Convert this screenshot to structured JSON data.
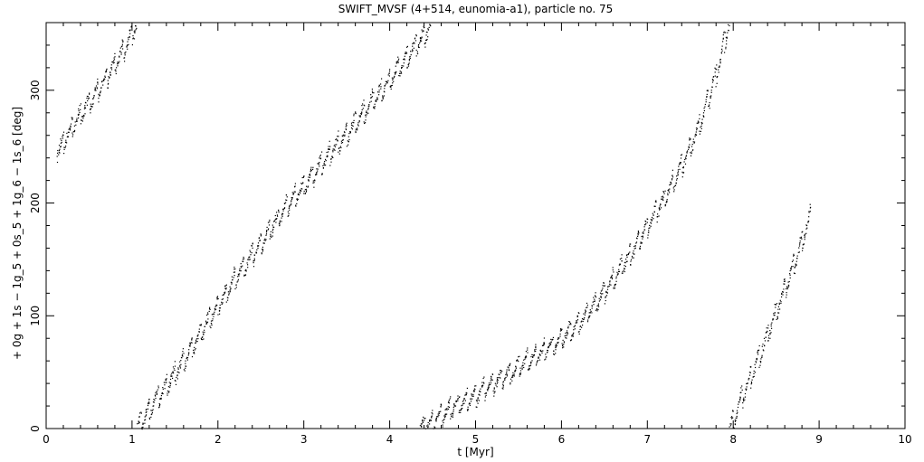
{
  "chart_data": {
    "type": "scatter",
    "title": "SWIFT_MVSF (4+514, eunomia-a1), particle no. 75",
    "xlabel": "t [Myr]",
    "ylabel": "+ 0g + 1s − 1g_5 + 0s_5 + 1g_6 − 1s_6 [deg]",
    "xlim": [
      0,
      10
    ],
    "ylim": [
      0,
      360
    ],
    "x_ticks": [
      "0",
      "1",
      "2",
      "3",
      "4",
      "5",
      "6",
      "7",
      "8",
      "9",
      "10"
    ],
    "y_ticks": [
      "0",
      "100",
      "200",
      "300"
    ],
    "grid": false,
    "marker_color": "#000000",
    "series": [
      {
        "x": [
          0.12,
          0.3,
          0.5,
          0.7,
          0.9,
          1.05
        ],
        "values": [
          245,
          268,
          290,
          312,
          337,
          360
        ]
      },
      {
        "x": [
          1.05,
          1.2,
          1.4,
          1.6,
          1.8,
          2.0,
          2.2,
          2.5,
          2.8,
          3.0,
          3.3,
          3.6,
          3.9,
          4.2,
          4.5
        ],
        "values": [
          0,
          18,
          38,
          62,
          86,
          110,
          135,
          165,
          198,
          216,
          244,
          272,
          300,
          330,
          360
        ]
      },
      {
        "x": [
          4.35,
          4.6,
          4.8,
          5.0,
          5.2,
          5.4,
          5.6,
          5.8,
          6.0,
          6.2,
          6.4,
          6.6,
          6.8,
          7.0,
          7.2,
          7.4,
          7.6,
          7.8,
          7.95
        ],
        "values": [
          0,
          12,
          22,
          30,
          40,
          50,
          60,
          70,
          80,
          94,
          112,
          132,
          155,
          180,
          205,
          235,
          268,
          315,
          360
        ]
      },
      {
        "x": [
          7.95,
          8.1,
          8.3,
          8.5,
          8.7,
          8.9
        ],
        "values": [
          0,
          28,
          65,
          105,
          145,
          190
        ]
      }
    ]
  }
}
